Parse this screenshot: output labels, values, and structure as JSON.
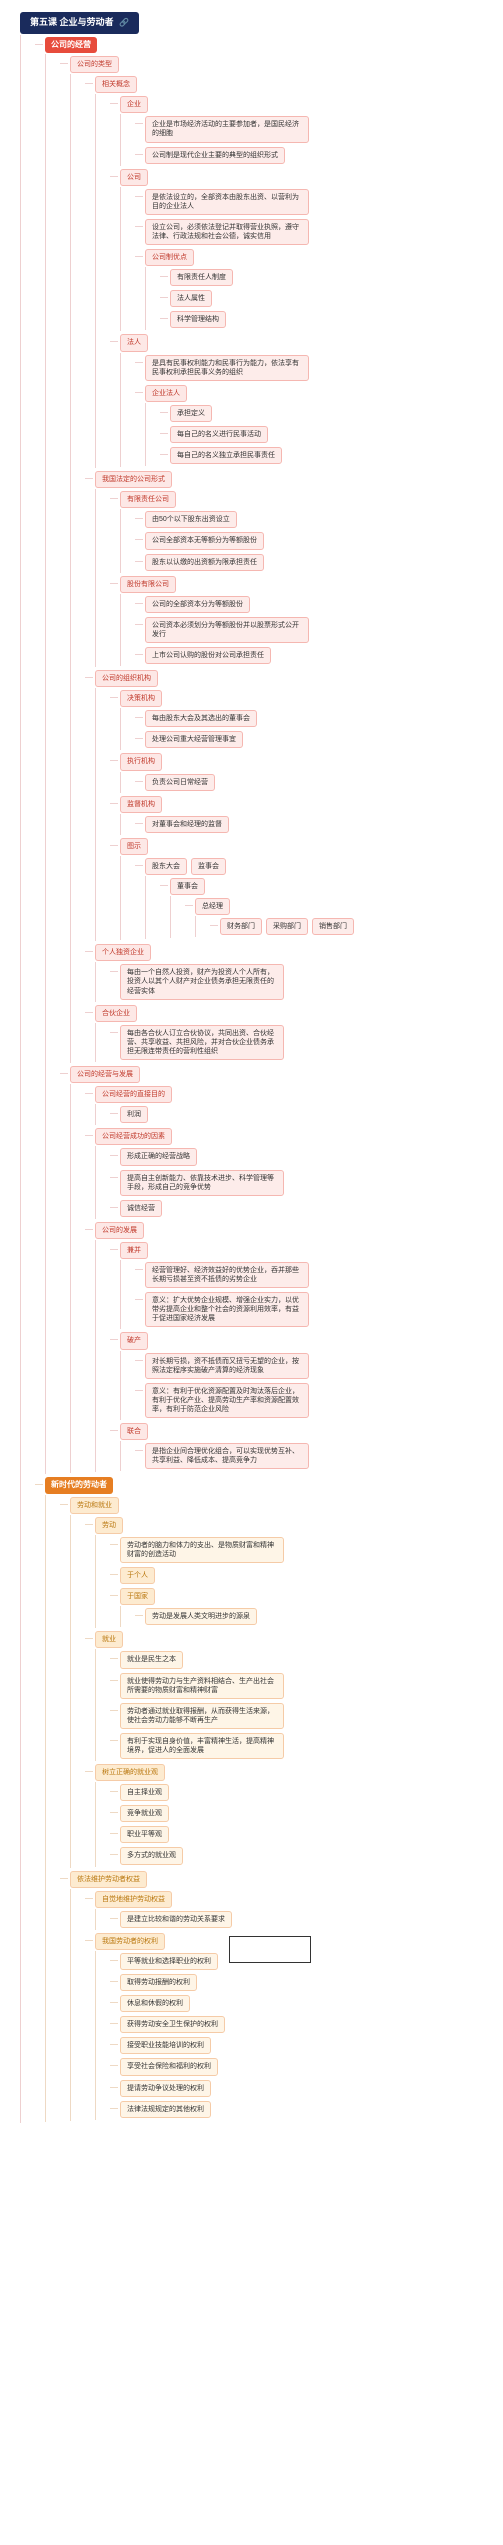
{
  "root": {
    "title": "第五课  企业与劳动者",
    "icon": "🔗"
  },
  "s1": {
    "title": "公司的经营",
    "a": {
      "title": "公司的类型",
      "n1": {
        "title": "相关概念",
        "c1": {
          "title": "企业",
          "t1": "企业是市场经济活动的主要参加者，是国民经济的细胞",
          "t2": "公司制是现代企业主要的典型的组织形式"
        },
        "c2": {
          "title": "公司",
          "t1": "是依法设立的，全部资本由股东出资、以营利为目的企业法人",
          "t2": "设立公司，必须依法登记并取得营业执照，遵守法律、行政法规和社会公德，诚实信用",
          "t3": "公司制优点",
          "t3a": "有限责任人制度",
          "t3b": "法人属性",
          "t3c": "科学管理结构"
        },
        "c3": {
          "title": "法人",
          "t1": "是具有民事权利能力和民事行为能力，依法享有民事权利承担民事义务的组织",
          "t2": "企业法人",
          "t2a": "承担定义",
          "t2b": "每自己的名义进行民事活动",
          "t2c": "每自己的名义独立承担民事责任"
        }
      },
      "n2": {
        "title": "我国法定的公司形式",
        "c1": {
          "title": "有限责任公司",
          "t1": "由50个以下股东出资设立",
          "t2": "公司全部资本无等额分为等额股份",
          "t3": "股东以认缴的出资额为限承担责任"
        },
        "c2": {
          "title": "股份有限公司",
          "t1": "公司的全部资本分为等额股份",
          "t2": "公司资本必须划分为等额股份并以股票形式公开发行",
          "t3": "上市公司认购的股份对公司承担责任"
        }
      },
      "n3": {
        "title": "公司的组织机构",
        "c1": {
          "title": "决策机构",
          "t1": "每由股东大会及其选出的董事会",
          "t2": "处理公司重大经营管理事宜"
        },
        "c2": {
          "title": "执行机构",
          "t1": "负责公司日常经营"
        },
        "c3": {
          "title": "监督机构",
          "t1": "对董事会和经理的监督"
        },
        "c4": {
          "title": "图示",
          "g1": "股东大会",
          "g2": "监事会",
          "g3": "董事会",
          "g4": "总经理",
          "g5": "财务部门",
          "g6": "采购部门",
          "g7": "销售部门"
        }
      },
      "n4": {
        "title": "个人独资企业",
        "t1": "每由一个自然人投资，财产为投资人个人所有，投资人以其个人财产对企业债务承担无限责任的经营实体"
      },
      "n5": {
        "title": "合伙企业",
        "t1": "每由各合伙人订立合伙协议，共同出资、合伙经营、共享收益、共担风险，并对合伙企业债务承担无限连带责任的营利性组织"
      }
    },
    "b": {
      "title": "公司的经营与发展",
      "n1": "公司经营的直接目的",
      "n1a": "利润",
      "n2": {
        "title": "公司经营成功的因素",
        "t1": "形成正确的经营战略",
        "t2": "提高自主创新能力、依靠技术进步、科学管理等手段，形成自己的竞争优势",
        "t3": "诚信经营"
      },
      "n3": {
        "title": "公司的发展",
        "c1": {
          "title": "兼并",
          "t1": "经营管理好、经济效益好的优势企业，吞并那些长期亏损甚至资不抵债的劣势企业",
          "t2": "意义：扩大优势企业规模、增强企业实力，以优带劣提高企业和整个社会的资源利用效率，有益于促进国家经济发展"
        },
        "c2": {
          "title": "破产",
          "t1": "对长期亏损，资不抵债而又扭亏无望的企业，按照法定程序实施破产清算的经济现象",
          "t2": "意义：有利于优化资源配置及时淘汰落后企业，有利于优化产业、提高劳动生产率和资源配置效率，有利于防范企业风险"
        },
        "c3": {
          "title": "联合",
          "t1": "是指企业间合理优化组合，可以实现优势互补、共享利益、降低成本、提高竞争力"
        }
      }
    }
  },
  "s2": {
    "title": "新时代的劳动者",
    "a": {
      "title": "劳动和就业",
      "n1": {
        "title": "劳动",
        "t1": "劳动者的脑力和体力的支出、是物质财富和精神财富的创造活动",
        "t2": "于个人",
        "t3": "于国家",
        "t3a": "劳动是发展人类文明进步的源泉"
      },
      "n2": {
        "title": "就业",
        "t1": "就业是民生之本",
        "t2": "就业使得劳动力与生产资料相结合、生产出社会所需要的物质财富和精神财富",
        "t3": "劳动者通过就业取得报酬，从而获得生活来源，使社会劳动力能够不断再生产",
        "t4": "有利于实现自身价值，丰富精神生活，提高精神境界，促进人的全面发展"
      },
      "n3": {
        "title": "树立正确的就业观",
        "t1": "自主择业观",
        "t2": "竞争就业观",
        "t3": "职业平等观",
        "t4": "多方式的就业观"
      }
    },
    "b": {
      "title": "依法维护劳动者权益",
      "n1": {
        "title": "自觉地维护劳动权益",
        "t1": "是建立比较和谐的劳动关系要求"
      },
      "n2": {
        "title": "我国劳动者的权利",
        "t1": "平等就业和选择职业的权利",
        "t2": "取得劳动报酬的权利",
        "t3": "休息和休假的权利",
        "t4": "获得劳动安全卫生保护的权利",
        "t5": "接受职业技能培训的权利",
        "t6": "享受社会保险和福利的权利",
        "t7": "提请劳动争议处理的权利",
        "t8": "法律法规规定的其他权利"
      }
    }
  }
}
